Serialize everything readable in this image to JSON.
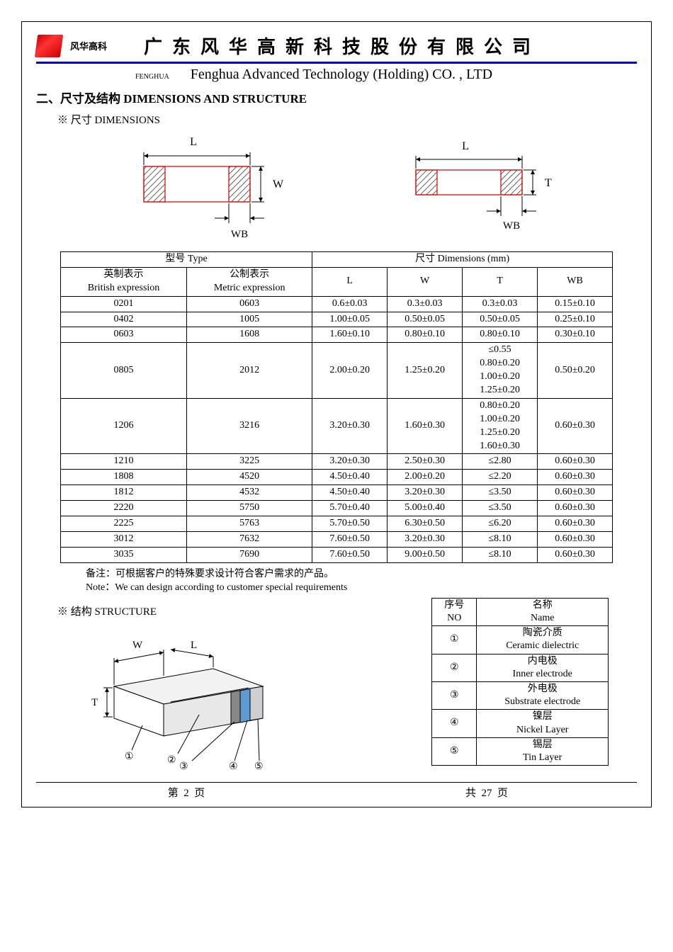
{
  "header": {
    "logo_text": "风华高科",
    "title_cn": "广东风华高新科技股份有限公司",
    "sub_left": "FENGHUA",
    "sub_right": "Fenghua Advanced Technology (Holding) CO. , LTD"
  },
  "section": {
    "title": "二、尺寸及结构  DIMENSIONS AND STRUCTURE",
    "sub_dim": "※ 尺寸 DIMENSIONS",
    "sub_struct": "※ 结构 STRUCTURE"
  },
  "diagram": {
    "L": "L",
    "W": "W",
    "T": "T",
    "WB": "WB",
    "hatch_color": "#000000",
    "outline_color": "#cc0000",
    "arrow_color": "#000000"
  },
  "dim_table": {
    "h_type": "型号 Type",
    "h_dim": "尺寸    Dimensions    (mm)",
    "h_brit_cn": "英制表示",
    "h_brit_en": "British expression",
    "h_met_cn": "公制表示",
    "h_met_en": "Metric expression",
    "h_L": "L",
    "h_W": "W",
    "h_T": "T",
    "h_WB": "WB",
    "rows": [
      {
        "b": "0201",
        "m": "0603",
        "L": "0.6±0.03",
        "W": "0.3±0.03",
        "T": "0.3±0.03",
        "WB": "0.15±0.10"
      },
      {
        "b": "0402",
        "m": "1005",
        "L": "1.00±0.05",
        "W": "0.50±0.05",
        "T": "0.50±0.05",
        "WB": "0.25±0.10"
      },
      {
        "b": "0603",
        "m": "1608",
        "L": "1.60±0.10",
        "W": "0.80±0.10",
        "T": "0.80±0.10",
        "WB": "0.30±0.10"
      },
      {
        "b": "0805",
        "m": "2012",
        "L": "2.00±0.20",
        "W": "1.25±0.20",
        "T": "≤0.55\n0.80±0.20\n1.00±0.20\n1.25±0.20",
        "WB": "0.50±0.20"
      },
      {
        "b": "1206",
        "m": "3216",
        "L": "3.20±0.30",
        "W": "1.60±0.30",
        "T": "0.80±0.20\n1.00±0.20\n1.25±0.20\n1.60±0.30",
        "WB": "0.60±0.30"
      },
      {
        "b": "1210",
        "m": "3225",
        "L": "3.20±0.30",
        "W": "2.50±0.30",
        "T": "≤2.80",
        "WB": "0.60±0.30"
      },
      {
        "b": "1808",
        "m": "4520",
        "L": "4.50±0.40",
        "W": "2.00±0.20",
        "T": "≤2.20",
        "WB": "0.60±0.30"
      },
      {
        "b": "1812",
        "m": "4532",
        "L": "4.50±0.40",
        "W": "3.20±0.30",
        "T": "≤3.50",
        "WB": "0.60±0.30"
      },
      {
        "b": "2220",
        "m": "5750",
        "L": "5.70±0.40",
        "W": "5.00±0.40",
        "T": "≤3.50",
        "WB": "0.60±0.30"
      },
      {
        "b": "2225",
        "m": "5763",
        "L": "5.70±0.50",
        "W": "6.30±0.50",
        "T": "≤6.20",
        "WB": "0.60±0.30"
      },
      {
        "b": "3012",
        "m": "7632",
        "L": "7.60±0.50",
        "W": "3.20±0.30",
        "T": "≤8.10",
        "WB": "0.60±0.30"
      },
      {
        "b": "3035",
        "m": "7690",
        "L": "7.60±0.50",
        "W": "9.00±0.50",
        "T": "≤8.10",
        "WB": "0.60±0.30"
      }
    ]
  },
  "notes": {
    "cn": "备注：可根据客户的特殊要求设计符合客户需求的产品。",
    "en": "Note：We can design according to customer special requirements"
  },
  "struct_diagram": {
    "W": "W",
    "L": "L",
    "T": "T",
    "n1": "①",
    "n2": "②",
    "n3": "③",
    "n4": "④",
    "n5": "⑤",
    "body_color": "#f2f2f2",
    "end_color": "#888888",
    "layer_color": "#5e9bd4",
    "line_color": "#000000"
  },
  "struct_table": {
    "h_no_cn": "序号",
    "h_no_en": "NO",
    "h_name_cn": "名称",
    "h_name_en": "Name",
    "rows": [
      {
        "no": "①",
        "cn": "陶瓷介质",
        "en": "Ceramic  dielectric"
      },
      {
        "no": "②",
        "cn": "内电极",
        "en": "Inner  electrode"
      },
      {
        "no": "③",
        "cn": "外电极",
        "en": "Substrate  electrode"
      },
      {
        "no": "④",
        "cn": "镍层",
        "en": "Nickel Layer"
      },
      {
        "no": "⑤",
        "cn": "锡层",
        "en": "Tin Layer"
      }
    ]
  },
  "footer": {
    "left_a": "第",
    "left_b": "2",
    "left_c": "页",
    "right_a": "共",
    "right_b": "27",
    "right_c": "页"
  },
  "colors": {
    "rule": "#0000cc",
    "text": "#000000"
  }
}
